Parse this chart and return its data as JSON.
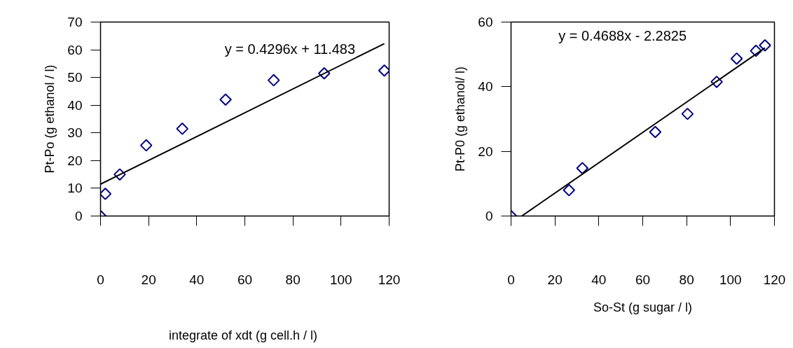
{
  "chart_data": [
    {
      "type": "scatter",
      "xlabel": "integrate of xdt  (g cell.h / l)",
      "ylabel": "Pt-Po (g ethanol / l)",
      "annotations": [
        "y = 0.4296x + 11.483"
      ],
      "xlim": [
        0,
        120
      ],
      "ylim": [
        0,
        70
      ],
      "xticks": [
        0,
        20,
        40,
        60,
        80,
        100,
        120
      ],
      "yticks": [
        0,
        10,
        20,
        30,
        40,
        50,
        60,
        70
      ],
      "grid": false,
      "series": [
        {
          "color": "#000080",
          "marker": "diamond",
          "x": [
            0,
            2,
            8,
            19,
            34,
            52,
            72,
            93,
            118
          ],
          "values": [
            0,
            8,
            15,
            25.5,
            31.5,
            42,
            49,
            51.5,
            52.5
          ]
        },
        {
          "type": "line",
          "color": "#000000",
          "x": [
            0,
            118
          ],
          "values": [
            11.5,
            62.2
          ]
        }
      ]
    },
    {
      "type": "scatter",
      "xlabel": "So-St (g sugar / l)",
      "ylabel": "Pt-P0 (g ethanol/ l)",
      "annotations": [
        "y = 0.4688x - 2.2825"
      ],
      "xlim": [
        0,
        120
      ],
      "ylim": [
        0,
        60
      ],
      "xticks": [
        0,
        20,
        40,
        60,
        80,
        100,
        120
      ],
      "yticks": [
        0,
        20,
        40,
        60
      ],
      "grid": false,
      "series": [
        {
          "color": "#000080",
          "marker": "diamond",
          "x": [
            0,
            26.4,
            32.5,
            65.7,
            80.4,
            93.7,
            102.8,
            111.6,
            115.7
          ],
          "values": [
            0,
            8,
            14.8,
            26,
            31.6,
            41.5,
            48.7,
            51.1,
            52.8
          ]
        },
        {
          "type": "line",
          "color": "#000000",
          "x": [
            4.9,
            115.7
          ],
          "values": [
            0,
            52
          ]
        }
      ]
    }
  ]
}
